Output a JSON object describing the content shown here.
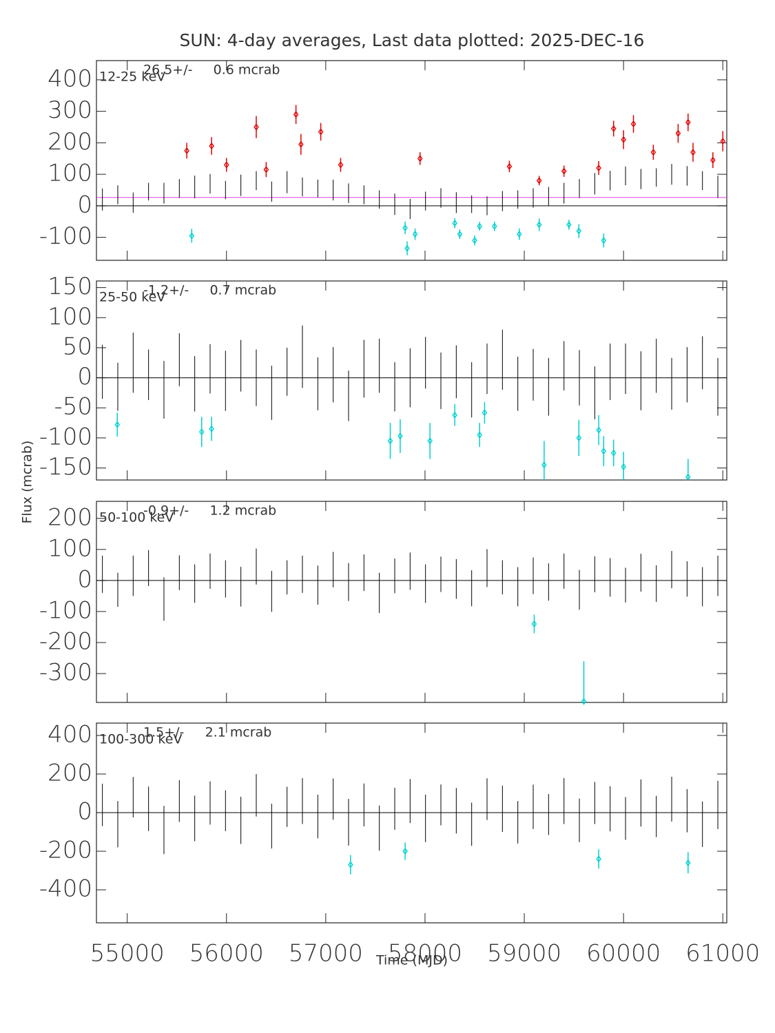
{
  "chart_data": [
    {
      "type": "errorbar",
      "title": "SUN:  4-day averages,  Last data plotted: 2025-DEC-16",
      "ylabel": "Flux (mcrab)",
      "band": "12-25 keV",
      "annotation": "26.5+/-     0.6 mcrab",
      "mean": 26.5,
      "mean_color": "#e040e0",
      "xlim": [
        54690,
        61040
      ],
      "xticks": [
        55000,
        56000,
        57000,
        58000,
        59000,
        60000,
        61000
      ],
      "ylim": [
        -173,
        461
      ],
      "yticks": [
        -100,
        0,
        100,
        200,
        300,
        400
      ],
      "series": [
        {
          "color": "#000000",
          "marker": "none",
          "x": [
            54750,
            54905,
            55060,
            55215,
            55370,
            55525,
            55680,
            55835,
            55990,
            56145,
            56300,
            56455,
            56610,
            56765,
            56920,
            57075,
            57230,
            57385,
            57540,
            57695,
            57850,
            58005,
            58160,
            58315,
            58470,
            58625,
            58780,
            58935,
            59090,
            59245,
            59400,
            59555,
            59710,
            59865,
            60020,
            60175,
            60330,
            60485,
            60640,
            60795,
            60950
          ],
          "values": [
            20,
            35,
            10,
            45,
            40,
            55,
            60,
            70,
            50,
            65,
            80,
            45,
            75,
            60,
            55,
            50,
            40,
            35,
            20,
            5,
            -10,
            15,
            25,
            10,
            5,
            0,
            15,
            20,
            25,
            30,
            40,
            55,
            70,
            80,
            95,
            85,
            90,
            100,
            95,
            80,
            60
          ],
          "errors": [
            35,
            30,
            32,
            28,
            33,
            30,
            36,
            31,
            29,
            34,
            30,
            32,
            35,
            30,
            28,
            33,
            31,
            30,
            29,
            34,
            32,
            30,
            31,
            33,
            28,
            30,
            32,
            29,
            31,
            30,
            33,
            30,
            34,
            31,
            30,
            32,
            29,
            33,
            31,
            30,
            35
          ]
        },
        {
          "color": "#e00000",
          "marker": "diamond",
          "x": [
            55600,
            55850,
            56000,
            56300,
            56400,
            56700,
            56750,
            56950,
            57150,
            57950,
            58850,
            59150,
            59400,
            59750,
            59900,
            60000,
            60100,
            60300,
            60550,
            60650,
            60700,
            60900,
            61000
          ],
          "values": [
            175,
            190,
            130,
            250,
            115,
            290,
            195,
            235,
            130,
            150,
            125,
            80,
            110,
            120,
            245,
            210,
            260,
            170,
            230,
            265,
            170,
            145,
            205
          ],
          "errors": [
            25,
            28,
            22,
            35,
            24,
            30,
            33,
            28,
            22,
            20,
            18,
            15,
            18,
            22,
            25,
            30,
            28,
            24,
            30,
            28,
            30,
            25,
            32
          ]
        },
        {
          "color": "#00d0d0",
          "marker": "diamond",
          "x": [
            55650,
            57800,
            57820,
            57900,
            58300,
            58350,
            58500,
            58550,
            58700,
            58950,
            59150,
            59450,
            59550,
            59800
          ],
          "values": [
            -95,
            -70,
            -135,
            -90,
            -55,
            -90,
            -110,
            -65,
            -65,
            -90,
            -60,
            -60,
            -80,
            -110
          ],
          "errors": [
            22,
            20,
            22,
            18,
            16,
            15,
            16,
            14,
            15,
            18,
            20,
            16,
            22,
            22
          ]
        }
      ]
    },
    {
      "type": "errorbar",
      "band": "25-50 keV",
      "annotation": "-1.2+/-     0.7 mcrab",
      "xlim": [
        54690,
        61040
      ],
      "xticks": [
        55000,
        56000,
        57000,
        58000,
        59000,
        60000,
        61000
      ],
      "ylim": [
        -170,
        161
      ],
      "yticks": [
        -150,
        -100,
        -50,
        0,
        50,
        100,
        150
      ],
      "series": [
        {
          "color": "#000000",
          "marker": "none",
          "x": [
            54750,
            54905,
            55060,
            55215,
            55370,
            55525,
            55680,
            55835,
            55990,
            56145,
            56300,
            56455,
            56610,
            56765,
            56920,
            57075,
            57230,
            57385,
            57540,
            57695,
            57850,
            58005,
            58160,
            58315,
            58470,
            58625,
            58780,
            58935,
            59090,
            59245,
            59400,
            59555,
            59710,
            59865,
            60020,
            60175,
            60330,
            60485,
            60640,
            60795,
            60950
          ],
          "values": [
            10,
            -15,
            25,
            5,
            -20,
            30,
            -10,
            15,
            -5,
            20,
            0,
            -25,
            10,
            35,
            -10,
            5,
            -30,
            15,
            20,
            -15,
            0,
            25,
            -5,
            10,
            -20,
            15,
            30,
            -10,
            5,
            -15,
            20,
            0,
            -25,
            10,
            15,
            -5,
            20,
            -10,
            5,
            25,
            -15
          ],
          "errors": [
            45,
            40,
            50,
            42,
            48,
            44,
            46,
            41,
            50,
            43,
            47,
            45,
            40,
            52,
            44,
            46,
            42,
            48,
            45,
            41,
            49,
            43,
            47,
            44,
            46,
            42,
            50,
            45,
            43,
            48,
            41,
            46,
            44,
            47,
            42,
            49,
            45,
            43,
            46,
            44,
            48
          ]
        },
        {
          "color": "#00d0d0",
          "marker": "diamond",
          "x": [
            54900,
            55750,
            55850,
            57650,
            57750,
            58050,
            58300,
            58550,
            58600,
            59200,
            59550,
            59750,
            59800,
            59900,
            60000,
            60650
          ],
          "values": [
            -78,
            -90,
            -85,
            -105,
            -97,
            -105,
            -62,
            -95,
            -58,
            -145,
            -100,
            -87,
            -122,
            -125,
            -148,
            -165
          ],
          "errors": [
            20,
            25,
            20,
            30,
            28,
            30,
            18,
            20,
            18,
            40,
            30,
            25,
            25,
            22,
            25,
            30
          ]
        }
      ]
    },
    {
      "type": "errorbar",
      "band": "50-100 keV",
      "annotation": "-0.9+/-     1.2 mcrab",
      "xlim": [
        54690,
        61040
      ],
      "xticks": [
        55000,
        56000,
        57000,
        58000,
        59000,
        60000,
        61000
      ],
      "ylim": [
        -393,
        255
      ],
      "yticks": [
        -300,
        -200,
        -100,
        0,
        100,
        200
      ],
      "series": [
        {
          "color": "#000000",
          "marker": "none",
          "x": [
            54750,
            54905,
            55060,
            55215,
            55370,
            55525,
            55680,
            55835,
            55990,
            56145,
            56300,
            56455,
            56610,
            56765,
            56920,
            57075,
            57230,
            57385,
            57540,
            57695,
            57850,
            58005,
            58160,
            58315,
            58470,
            58625,
            58780,
            58935,
            59090,
            59245,
            59400,
            59555,
            59710,
            59865,
            60020,
            60175,
            60330,
            60485,
            60640,
            60795,
            60950
          ],
          "values": [
            20,
            -30,
            15,
            40,
            -60,
            25,
            -10,
            30,
            5,
            -20,
            45,
            -35,
            10,
            20,
            -15,
            35,
            -5,
            25,
            -40,
            15,
            30,
            -10,
            20,
            5,
            -25,
            40,
            10,
            -20,
            15,
            -5,
            30,
            -30,
            20,
            10,
            -15,
            25,
            -10,
            35,
            5,
            -20,
            15
          ],
          "errors": [
            60,
            55,
            65,
            58,
            70,
            56,
            62,
            57,
            60,
            64,
            58,
            66,
            55,
            60,
            63,
            57,
            61,
            59,
            65,
            56,
            60,
            62,
            57,
            64,
            58,
            61,
            55,
            63,
            59,
            60,
            57,
            64,
            58,
            62,
            56,
            61,
            59,
            60,
            57,
            63,
            65
          ]
        },
        {
          "color": "#00d0d0",
          "marker": "diamond",
          "x": [
            59100,
            59600
          ],
          "values": [
            -140,
            -390
          ],
          "errors": [
            30,
            130
          ]
        }
      ]
    },
    {
      "type": "errorbar",
      "band": "100-300 keV",
      "annotation": "1.5+/-     2.1 mcrab",
      "xlabel": "Time (MJD)",
      "xlim": [
        54690,
        61040
      ],
      "xticks": [
        55000,
        56000,
        57000,
        58000,
        59000,
        60000,
        61000
      ],
      "ylim": [
        -571,
        464
      ],
      "yticks": [
        -400,
        -200,
        0,
        200,
        400
      ],
      "series": [
        {
          "color": "#000000",
          "marker": "none",
          "x": [
            54750,
            54905,
            55060,
            55215,
            55370,
            55525,
            55680,
            55835,
            55990,
            56145,
            56300,
            56455,
            56610,
            56765,
            56920,
            57075,
            57230,
            57385,
            57540,
            57695,
            57850,
            58005,
            58160,
            58315,
            58470,
            58625,
            58780,
            58935,
            59090,
            59245,
            59400,
            59555,
            59710,
            59865,
            60020,
            60175,
            60330,
            60485,
            60640,
            60795,
            60950
          ],
          "values": [
            40,
            -60,
            80,
            20,
            -90,
            60,
            -30,
            50,
            10,
            -40,
            90,
            -70,
            30,
            60,
            -20,
            70,
            -50,
            40,
            -80,
            20,
            60,
            -30,
            40,
            10,
            -60,
            70,
            20,
            -50,
            30,
            -10,
            60,
            -40,
            50,
            20,
            -30,
            50,
            -20,
            70,
            10,
            -60,
            40
          ],
          "errors": [
            110,
            120,
            105,
            115,
            125,
            108,
            118,
            112,
            106,
            122,
            110,
            116,
            104,
            119,
            113,
            107,
            121,
            111,
            117,
            109,
            114,
            123,
            106,
            118,
            112,
            108,
            120,
            110,
            115,
            106,
            119,
            113,
            109,
            117,
            111,
            122,
            107,
            116,
            112,
            118,
            125
          ]
        },
        {
          "color": "#00d0d0",
          "marker": "diamond",
          "x": [
            57250,
            57800,
            59750,
            60650
          ],
          "values": [
            -270,
            -200,
            -240,
            -260
          ],
          "errors": [
            50,
            45,
            50,
            55
          ]
        }
      ]
    }
  ]
}
